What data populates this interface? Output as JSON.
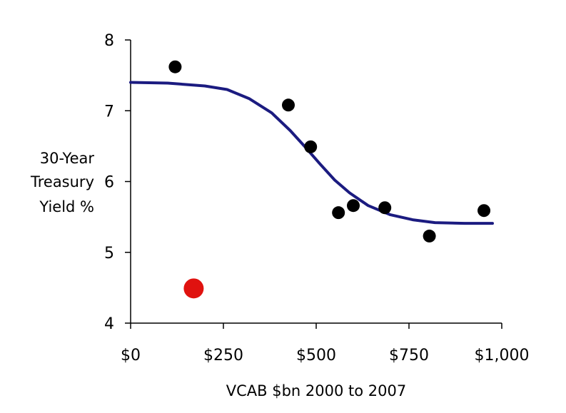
{
  "chart_data": {
    "type": "scatter",
    "title": "",
    "xlabel": "VCAB $bn 2000 to 2007",
    "ylabel_lines": [
      "30-Year",
      "Treasury",
      "Yield %"
    ],
    "xlim": [
      0,
      1000
    ],
    "ylim": [
      4,
      8
    ],
    "x_ticks": [
      0,
      250,
      500,
      750,
      1000
    ],
    "x_tick_labels": [
      "$0",
      "$250",
      "$500",
      "$750",
      "$1,000"
    ],
    "y_ticks": [
      4,
      5,
      6,
      7,
      8
    ],
    "y_tick_labels": [
      "4",
      "5",
      "6",
      "7",
      "8"
    ],
    "grid": false,
    "legend": "none",
    "series": [
      {
        "color": "#000000",
        "points": [
          {
            "x": 120,
            "y": 7.62
          },
          {
            "x": 425,
            "y": 7.08
          },
          {
            "x": 485,
            "y": 6.49
          },
          {
            "x": 560,
            "y": 5.56
          },
          {
            "x": 600,
            "y": 5.66
          },
          {
            "x": 685,
            "y": 5.63
          },
          {
            "x": 805,
            "y": 5.23
          },
          {
            "x": 952,
            "y": 5.59
          }
        ]
      },
      {
        "color": "#e0120f",
        "points": [
          {
            "x": 170,
            "y": 4.49
          }
        ]
      }
    ],
    "fit_curve": {
      "color": "#1b1b80",
      "x": [
        0,
        100,
        200,
        260,
        320,
        380,
        430,
        470,
        510,
        550,
        590,
        640,
        700,
        760,
        820,
        900,
        975
      ],
      "y": [
        7.4,
        7.39,
        7.35,
        7.3,
        7.17,
        6.97,
        6.72,
        6.49,
        6.25,
        6.02,
        5.84,
        5.66,
        5.53,
        5.46,
        5.42,
        5.41,
        5.41
      ]
    }
  }
}
